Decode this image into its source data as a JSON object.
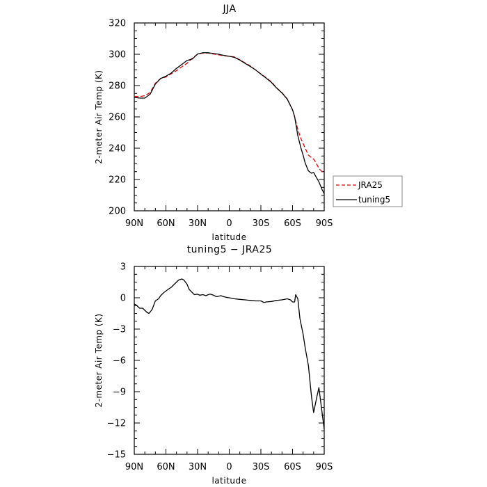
{
  "chart_data": [
    {
      "type": "line",
      "title": "JJA",
      "xlabel": "latitude",
      "ylabel": "2-meter Air Temp (K)",
      "xlim": [
        90,
        -90
      ],
      "ylim": [
        200,
        320
      ],
      "x_ticks": [
        90,
        60,
        30,
        0,
        -30,
        -60,
        -90
      ],
      "x_tick_labels": [
        "90N",
        "60N",
        "30N",
        "0",
        "30S",
        "60S",
        "90S"
      ],
      "y_ticks": [
        200,
        220,
        240,
        260,
        280,
        300,
        320
      ],
      "y_tick_labels": [
        "200",
        "220",
        "240",
        "260",
        "280",
        "300",
        "320"
      ],
      "legend": {
        "placement": "outside-right-bottom"
      },
      "series": [
        {
          "name": "JRA25",
          "color": "#e60000",
          "dash": "dashed",
          "x": [
            90,
            85,
            80,
            75,
            70,
            65,
            60,
            55,
            50,
            45,
            40,
            35,
            30,
            25,
            20,
            15,
            10,
            5,
            0,
            -5,
            -10,
            -15,
            -20,
            -25,
            -30,
            -35,
            -40,
            -45,
            -50,
            -55,
            -60,
            -62,
            -65,
            -68,
            -70,
            -72,
            -75,
            -78,
            -80,
            -82,
            -85,
            -88,
            -90
          ],
          "y": [
            273,
            273,
            273.5,
            275.5,
            281.5,
            284.5,
            285.5,
            287.5,
            289.5,
            292,
            294.2,
            297.5,
            300,
            300.8,
            300.8,
            300.2,
            299.6,
            299,
            298.7,
            298.3,
            296.5,
            294.5,
            292.5,
            290,
            287.5,
            285,
            282.3,
            278.5,
            275.5,
            271.5,
            264.5,
            260,
            252,
            246,
            243,
            240,
            235.5,
            234,
            233,
            231,
            227,
            225,
            224.5
          ]
        },
        {
          "name": "tuning5",
          "color": "#000000",
          "dash": "solid",
          "x": [
            90,
            85,
            80,
            75,
            70,
            65,
            60,
            55,
            50,
            45,
            40,
            35,
            30,
            25,
            20,
            15,
            10,
            5,
            0,
            -5,
            -10,
            -15,
            -20,
            -25,
            -30,
            -35,
            -40,
            -45,
            -50,
            -55,
            -60,
            -62,
            -65,
            -68,
            -70,
            -72,
            -75,
            -78,
            -80,
            -82,
            -85,
            -88,
            -90
          ],
          "y": [
            272.5,
            272,
            272,
            274.5,
            281,
            284.5,
            286,
            288,
            291,
            293.5,
            296,
            297,
            300.2,
            301,
            301,
            300.5,
            300,
            299.3,
            298.7,
            298,
            296.3,
            294.2,
            292.2,
            290,
            287.3,
            284.8,
            282,
            278.3,
            275.3,
            271.3,
            264.5,
            260.2,
            248,
            240,
            235.5,
            230.5,
            225.5,
            224,
            224.5,
            222,
            218.5,
            213.5,
            211
          ]
        }
      ]
    },
    {
      "type": "line",
      "title": "tuning5 − JRA25",
      "xlabel": "latitude",
      "ylabel": "2-meter Air Temp (K)",
      "xlim": [
        90,
        -90
      ],
      "ylim": [
        -15,
        3
      ],
      "x_ticks": [
        90,
        60,
        30,
        0,
        -30,
        -60,
        -90
      ],
      "x_tick_labels": [
        "90N",
        "60N",
        "30N",
        "0",
        "30S",
        "60S",
        "90S"
      ],
      "y_ticks": [
        -15,
        -12,
        -9,
        -6,
        -3,
        0,
        3
      ],
      "y_tick_labels": [
        "−15",
        "−12",
        "−9",
        "−6",
        "−3",
        "0",
        "3"
      ],
      "series": [
        {
          "color": "#000000",
          "dash": "solid",
          "x": [
            90,
            88,
            85,
            82,
            80,
            78,
            76,
            73,
            70,
            67,
            65,
            62,
            58,
            55,
            52,
            50,
            48,
            45,
            43,
            40,
            38,
            35,
            33,
            30,
            28,
            25,
            22,
            20,
            18,
            15,
            12,
            10,
            8,
            5,
            3,
            0,
            -5,
            -10,
            -15,
            -20,
            -25,
            -30,
            -33,
            -35,
            -40,
            -45,
            -50,
            -55,
            -58,
            -60,
            -62,
            -63,
            -65,
            -67,
            -70,
            -72,
            -75,
            -78,
            -80,
            -83,
            -85,
            -87,
            -90
          ],
          "y": [
            -0.6,
            -0.7,
            -1.0,
            -1.0,
            -1.2,
            -1.4,
            -1.5,
            -1.1,
            -0.3,
            -0.1,
            0.2,
            0.5,
            0.8,
            1.0,
            1.3,
            1.5,
            1.7,
            1.8,
            1.7,
            1.3,
            0.8,
            0.5,
            0.3,
            0.35,
            0.25,
            0.3,
            0.2,
            0.3,
            0.35,
            0.25,
            0.1,
            0.15,
            0.2,
            0.1,
            0.05,
            0.0,
            -0.1,
            -0.15,
            -0.2,
            -0.25,
            -0.3,
            -0.3,
            -0.45,
            -0.4,
            -0.35,
            -0.25,
            -0.2,
            -0.1,
            -0.2,
            -0.4,
            -0.4,
            0.3,
            -0.1,
            -2.0,
            -3.5,
            -4.8,
            -6.5,
            -9.5,
            -11.0,
            -9.5,
            -8.6,
            -10.2,
            -12.6
          ]
        }
      ]
    }
  ]
}
